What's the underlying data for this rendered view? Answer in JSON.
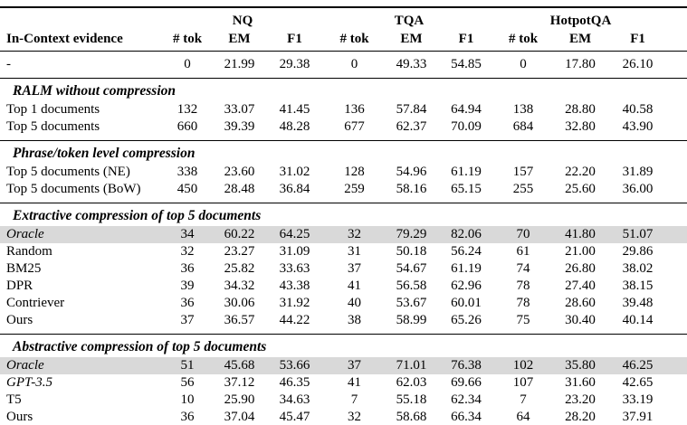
{
  "colors": {
    "background": "#ffffff",
    "text": "#000000",
    "rule": "#000000",
    "highlight_row": "#d9d9d9"
  },
  "table": {
    "header": {
      "evidence_col": "In-Context evidence",
      "groups": [
        {
          "label": "NQ"
        },
        {
          "label": "TQA"
        },
        {
          "label": "HotpotQA"
        }
      ],
      "sub": [
        "# tok",
        "EM",
        "F1"
      ]
    },
    "sections": [
      {
        "title": "",
        "rows": [
          {
            "label": "-",
            "italic": false,
            "highlight": false,
            "values": [
              "0",
              "21.99",
              "29.38",
              "0",
              "49.33",
              "54.85",
              "0",
              "17.80",
              "26.10"
            ],
            "bold": []
          }
        ]
      },
      {
        "title": "RALM without compression",
        "rows": [
          {
            "label": "Top 1 documents",
            "italic": false,
            "highlight": false,
            "values": [
              "132",
              "33.07",
              "41.45",
              "136",
              "57.84",
              "64.94",
              "138",
              "28.80",
              "40.58"
            ],
            "bold": []
          },
          {
            "label": "Top 5 documents",
            "italic": false,
            "highlight": false,
            "values": [
              "660",
              "39.39",
              "48.28",
              "677",
              "62.37",
              "70.09",
              "684",
              "32.80",
              "43.90"
            ],
            "bold": [
              1,
              2,
              4,
              5,
              7,
              8
            ]
          }
        ]
      },
      {
        "title": "Phrase/token level compression",
        "rows": [
          {
            "label": "Top 5 documents (NE)",
            "italic": false,
            "highlight": false,
            "values": [
              "338",
              "23.60",
              "31.02",
              "128",
              "54.96",
              "61.19",
              "157",
              "22.20",
              "31.89"
            ],
            "bold": []
          },
          {
            "label": "Top 5 documents (BoW)",
            "italic": false,
            "highlight": false,
            "values": [
              "450",
              "28.48",
              "36.84",
              "259",
              "58.16",
              "65.15",
              "255",
              "25.60",
              "36.00"
            ],
            "bold": []
          }
        ]
      },
      {
        "title": "Extractive compression of top 5 documents",
        "rows": [
          {
            "label": "Oracle",
            "italic": true,
            "highlight": true,
            "values": [
              "34",
              "60.22",
              "64.25",
              "32",
              "79.29",
              "82.06",
              "70",
              "41.80",
              "51.07"
            ],
            "bold": []
          },
          {
            "label": "Random",
            "italic": false,
            "highlight": false,
            "values": [
              "32",
              "23.27",
              "31.09",
              "31",
              "50.18",
              "56.24",
              "61",
              "21.00",
              "29.86"
            ],
            "bold": []
          },
          {
            "label": "BM25",
            "italic": false,
            "highlight": false,
            "values": [
              "36",
              "25.82",
              "33.63",
              "37",
              "54.67",
              "61.19",
              "74",
              "26.80",
              "38.02"
            ],
            "bold": []
          },
          {
            "label": "DPR",
            "italic": false,
            "highlight": false,
            "values": [
              "39",
              "34.32",
              "43.38",
              "41",
              "56.58",
              "62.96",
              "78",
              "27.40",
              "38.15"
            ],
            "bold": []
          },
          {
            "label": "Contriever",
            "italic": false,
            "highlight": false,
            "values": [
              "36",
              "30.06",
              "31.92",
              "40",
              "53.67",
              "60.01",
              "78",
              "28.60",
              "39.48"
            ],
            "bold": []
          },
          {
            "label": "Ours",
            "italic": false,
            "highlight": false,
            "values": [
              "37",
              "36.57",
              "44.22",
              "38",
              "58.99",
              "65.26",
              "75",
              "30.40",
              "40.14"
            ],
            "bold": [
              4,
              7,
              8
            ]
          }
        ]
      },
      {
        "title": "Abstractive compression of top 5 documents",
        "rows": [
          {
            "label": "Oracle",
            "italic": true,
            "highlight": true,
            "values": [
              "51",
              "45.68",
              "53.66",
              "37",
              "71.01",
              "76.38",
              "102",
              "35.80",
              "46.25"
            ],
            "bold": []
          },
          {
            "label": "GPT-3.5",
            "italic": true,
            "highlight": false,
            "values": [
              "56",
              "37.12",
              "46.35",
              "41",
              "62.03",
              "69.66",
              "107",
              "31.60",
              "42.65"
            ],
            "bold": []
          },
          {
            "label": "T5",
            "italic": false,
            "highlight": false,
            "values": [
              "10",
              "25.90",
              "34.63",
              "7",
              "55.18",
              "62.34",
              "7",
              "23.20",
              "33.19"
            ],
            "bold": [
              0,
              3,
              6
            ]
          },
          {
            "label": "Ours",
            "italic": false,
            "highlight": false,
            "values": [
              "36",
              "37.04",
              "45.47",
              "32",
              "58.68",
              "66.34",
              "64",
              "28.20",
              "37.91"
            ],
            "bold": [
              1,
              2,
              5
            ]
          }
        ]
      }
    ]
  }
}
